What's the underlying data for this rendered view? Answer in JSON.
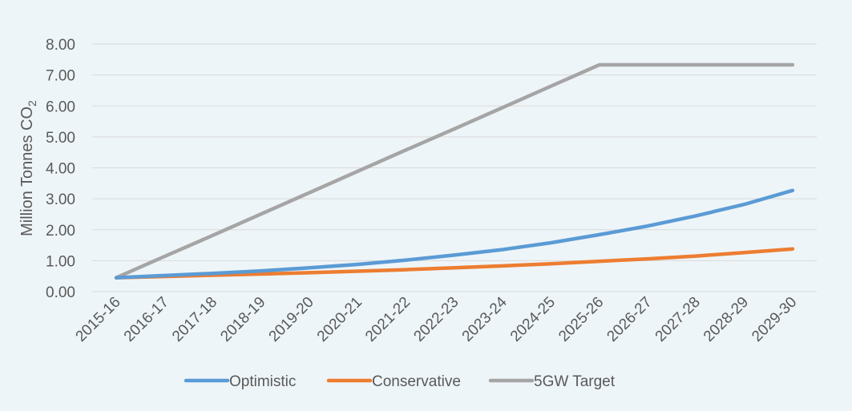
{
  "chart_data": {
    "type": "line",
    "ylabel": "Million Tonnes CO",
    "ylabel_subscript": "2",
    "ylim": [
      0,
      8
    ],
    "yticks": [
      "0.00",
      "1.00",
      "2.00",
      "3.00",
      "4.00",
      "5.00",
      "6.00",
      "7.00",
      "8.00"
    ],
    "grid": true,
    "legend_position": "bottom",
    "categories": [
      "2015-16",
      "2016-17",
      "2017-18",
      "2018-19",
      "2019-20",
      "2020-21",
      "2021-22",
      "2022-23",
      "2023-24",
      "2024-25",
      "2025-26",
      "2026-27",
      "2027-28",
      "2028-29",
      "2029-30"
    ],
    "series": [
      {
        "name": "Optimistic",
        "color": "#5b9bd5",
        "values": [
          0.45,
          0.52,
          0.59,
          0.67,
          0.77,
          0.88,
          1.02,
          1.18,
          1.36,
          1.58,
          1.84,
          2.12,
          2.45,
          2.82,
          3.27
        ]
      },
      {
        "name": "Conservative",
        "color": "#ed7d31",
        "values": [
          0.45,
          0.49,
          0.53,
          0.57,
          0.61,
          0.66,
          0.71,
          0.77,
          0.83,
          0.9,
          0.98,
          1.06,
          1.15,
          1.26,
          1.38
        ]
      },
      {
        "name": "5GW Target",
        "color": "#a5a5a5",
        "values": [
          0.45,
          1.14,
          1.82,
          2.51,
          3.2,
          3.89,
          4.58,
          5.26,
          5.95,
          6.64,
          7.33,
          7.33,
          7.33,
          7.33,
          7.33
        ]
      }
    ]
  }
}
